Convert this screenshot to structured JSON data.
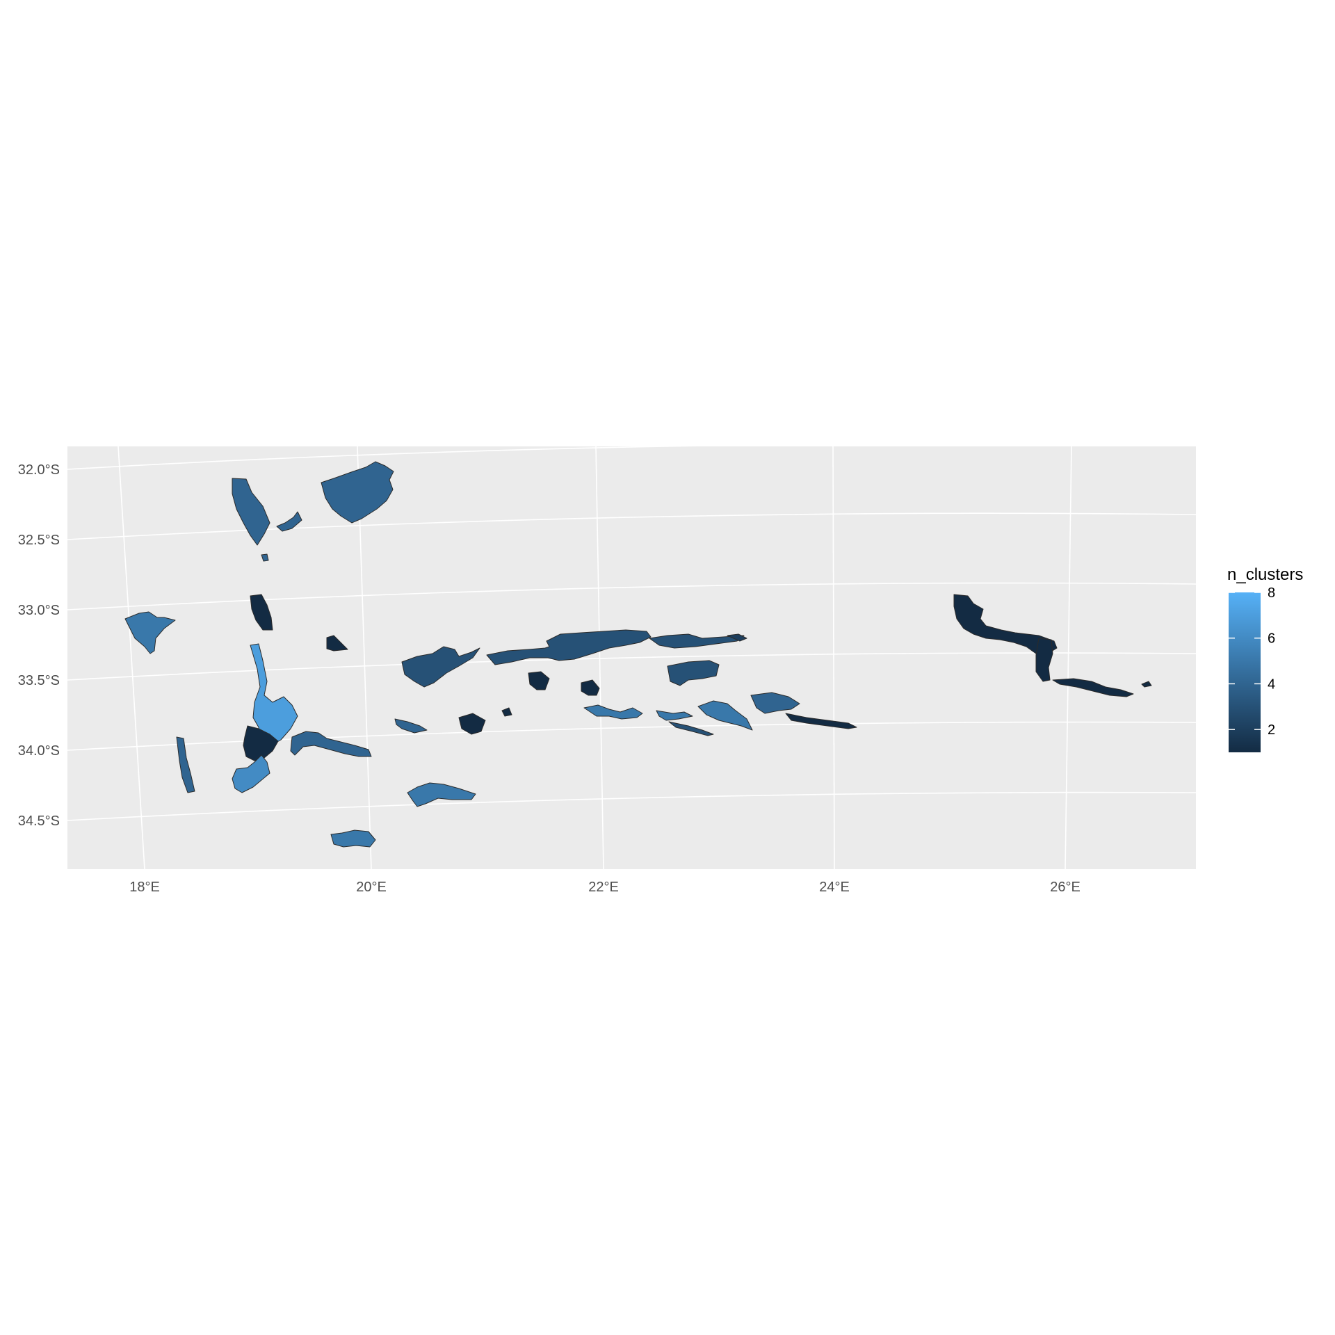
{
  "map": {
    "fill_variable": "n_clusters",
    "panel_background": "#ebebeb",
    "grid_color": "#ffffff",
    "outline_color": "#2b2b2b",
    "x_ticks": [
      "18°E",
      "20°E",
      "22°E",
      "24°E",
      "26°E"
    ],
    "y_ticks": [
      "32.0°S",
      "32.5°S",
      "33.0°S",
      "33.5°S",
      "34.0°S",
      "34.5°S"
    ],
    "legend": {
      "title": "n_clusters",
      "min": 1,
      "max": 8,
      "low_color": "#132b43",
      "high_color": "#56b1f7",
      "breaks": [
        "2",
        "4",
        "6",
        "8"
      ]
    },
    "regions": [
      {
        "id": "cederberg-north",
        "value": 4
      },
      {
        "id": "cederberg-small",
        "value": 4
      },
      {
        "id": "tanqua-karoo",
        "value": 4
      },
      {
        "id": "tanqua-east",
        "value": 4
      },
      {
        "id": "west-coast",
        "value": 5
      },
      {
        "id": "piketberg",
        "value": 1
      },
      {
        "id": "koue-bokkeveld",
        "value": 1
      },
      {
        "id": "boland",
        "value": 7
      },
      {
        "id": "hottentots-holland",
        "value": 1
      },
      {
        "id": "cape-peninsula",
        "value": 4
      },
      {
        "id": "kogelberg",
        "value": 6
      },
      {
        "id": "riviersonderend",
        "value": 4
      },
      {
        "id": "agulhas",
        "value": 5
      },
      {
        "id": "dehoop",
        "value": 5
      },
      {
        "id": "swartberg-west",
        "value": 3
      },
      {
        "id": "swartberg-central",
        "value": 3
      },
      {
        "id": "swartberg-east",
        "value": 3
      },
      {
        "id": "baviaanskloof-west",
        "value": 3
      },
      {
        "id": "baviaanskloof-east",
        "value": 2
      },
      {
        "id": "langeberg-1",
        "value": 1
      },
      {
        "id": "langeberg-2",
        "value": 1
      },
      {
        "id": "langeberg-3",
        "value": 1
      },
      {
        "id": "langeberg-4",
        "value": 1
      },
      {
        "id": "outeniqua-west",
        "value": 5
      },
      {
        "id": "outeniqua-central",
        "value": 5
      },
      {
        "id": "tsitsikamma",
        "value": 5
      },
      {
        "id": "knysna-coast",
        "value": 4
      },
      {
        "id": "anysberg",
        "value": 1
      },
      {
        "id": "swellendam",
        "value": 3
      },
      {
        "id": "cape-st-francis",
        "value": 4
      },
      {
        "id": "zuurberg",
        "value": 1
      },
      {
        "id": "groot-winterhoek",
        "value": 1
      },
      {
        "id": "addo-coast",
        "value": 1
      },
      {
        "id": "addo-east",
        "value": 1
      }
    ]
  }
}
